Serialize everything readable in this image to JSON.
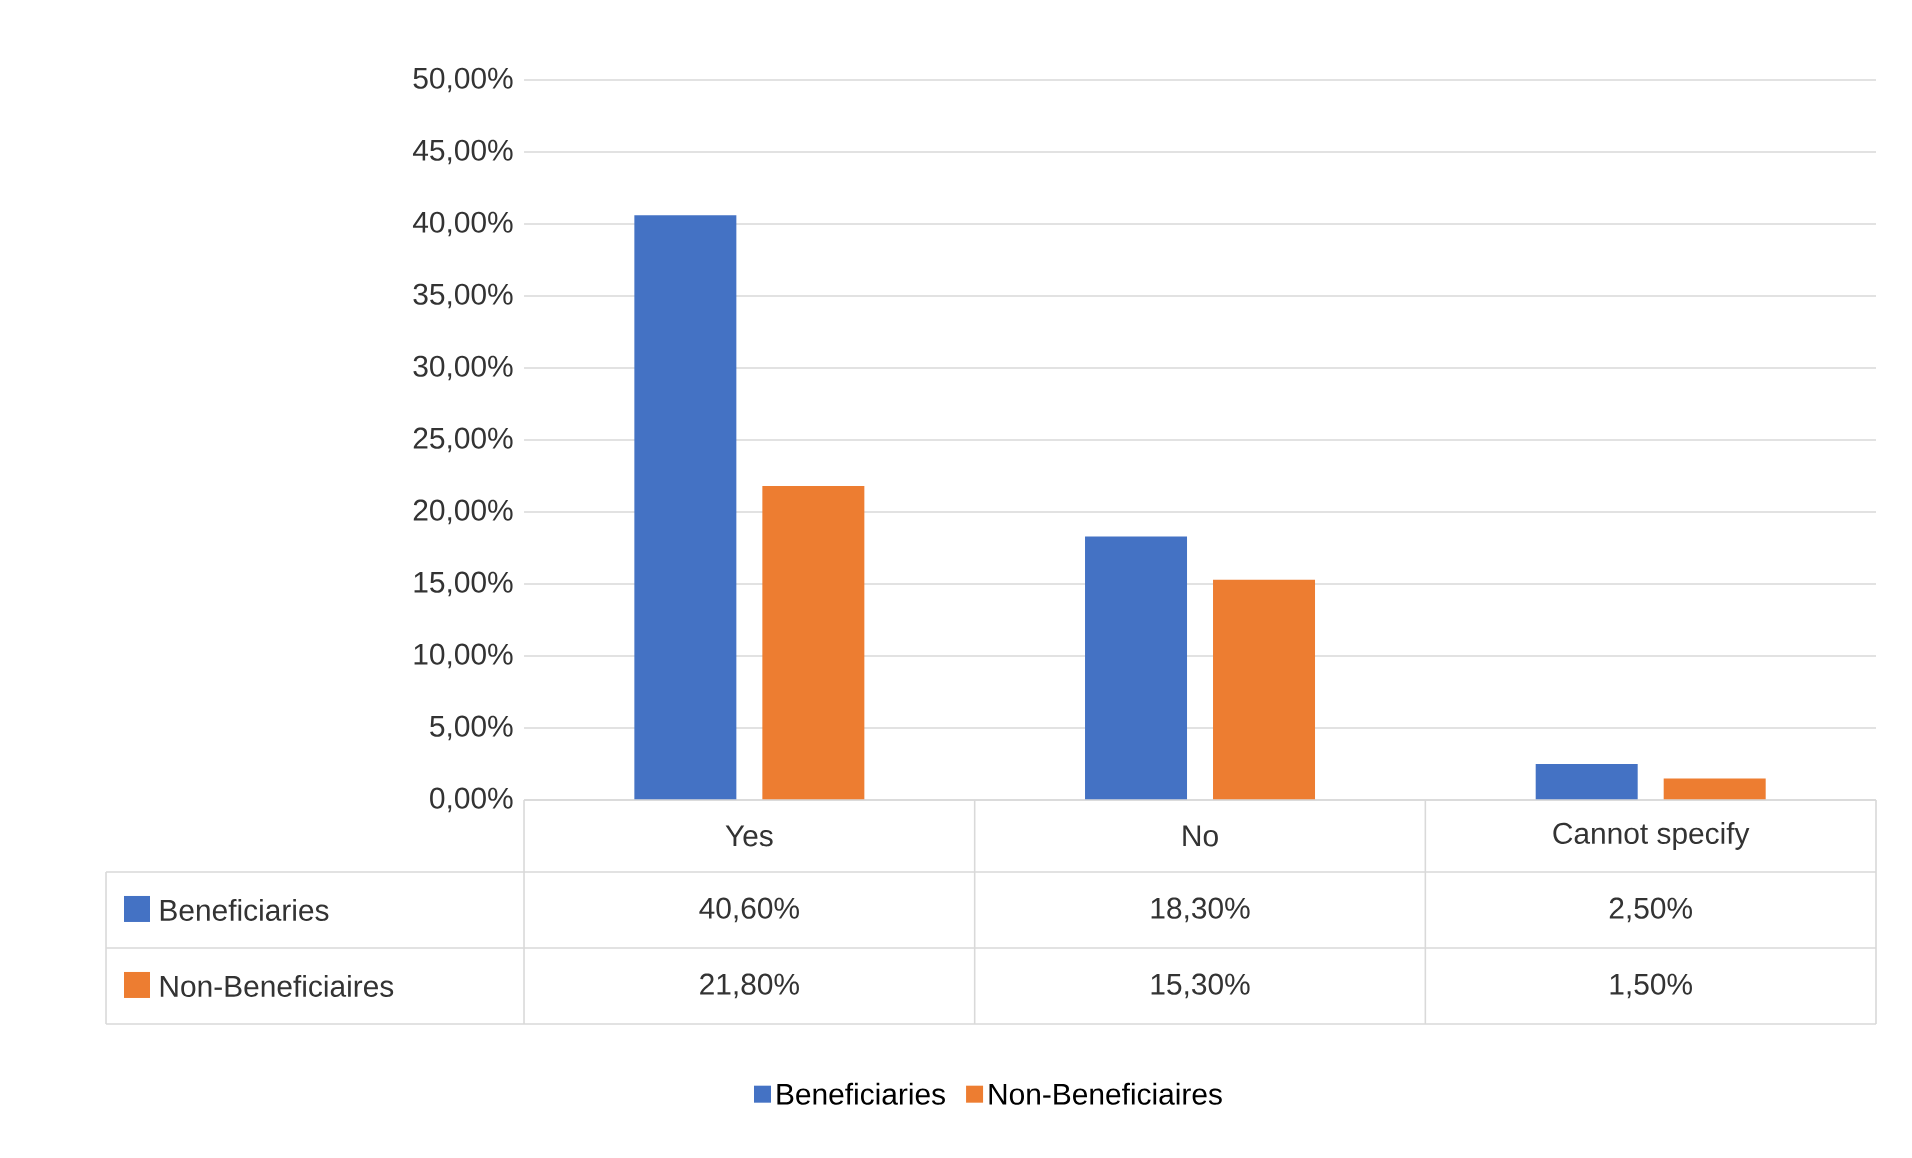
{
  "chart_data": {
    "type": "bar",
    "categories": [
      "Yes",
      "No",
      "Cannot specify"
    ],
    "series": [
      {
        "name": "Beneficiaries",
        "color": "#4472c4",
        "values": [
          40.6,
          18.3,
          2.5
        ],
        "value_labels": [
          "40,60%",
          "18,30%",
          "2,50%"
        ]
      },
      {
        "name": "Non-Beneficiaires",
        "color": "#ed7d31",
        "values": [
          21.8,
          15.3,
          1.5
        ],
        "value_labels": [
          "21,80%",
          "15,30%",
          "1,50%"
        ]
      }
    ],
    "ylim": [
      0,
      50
    ],
    "yticks": [
      {
        "value": 0,
        "label": "0,00%"
      },
      {
        "value": 5,
        "label": "5,00%"
      },
      {
        "value": 10,
        "label": "10,00%"
      },
      {
        "value": 15,
        "label": "15,00%"
      },
      {
        "value": 20,
        "label": "20,00%"
      },
      {
        "value": 25,
        "label": "25,00%"
      },
      {
        "value": 30,
        "label": "30,00%"
      },
      {
        "value": 35,
        "label": "35,00%"
      },
      {
        "value": 40,
        "label": "40,00%"
      },
      {
        "value": 45,
        "label": "45,00%"
      },
      {
        "value": 50,
        "label": "50,00%"
      }
    ],
    "grid": "y",
    "legend": "bottom"
  }
}
